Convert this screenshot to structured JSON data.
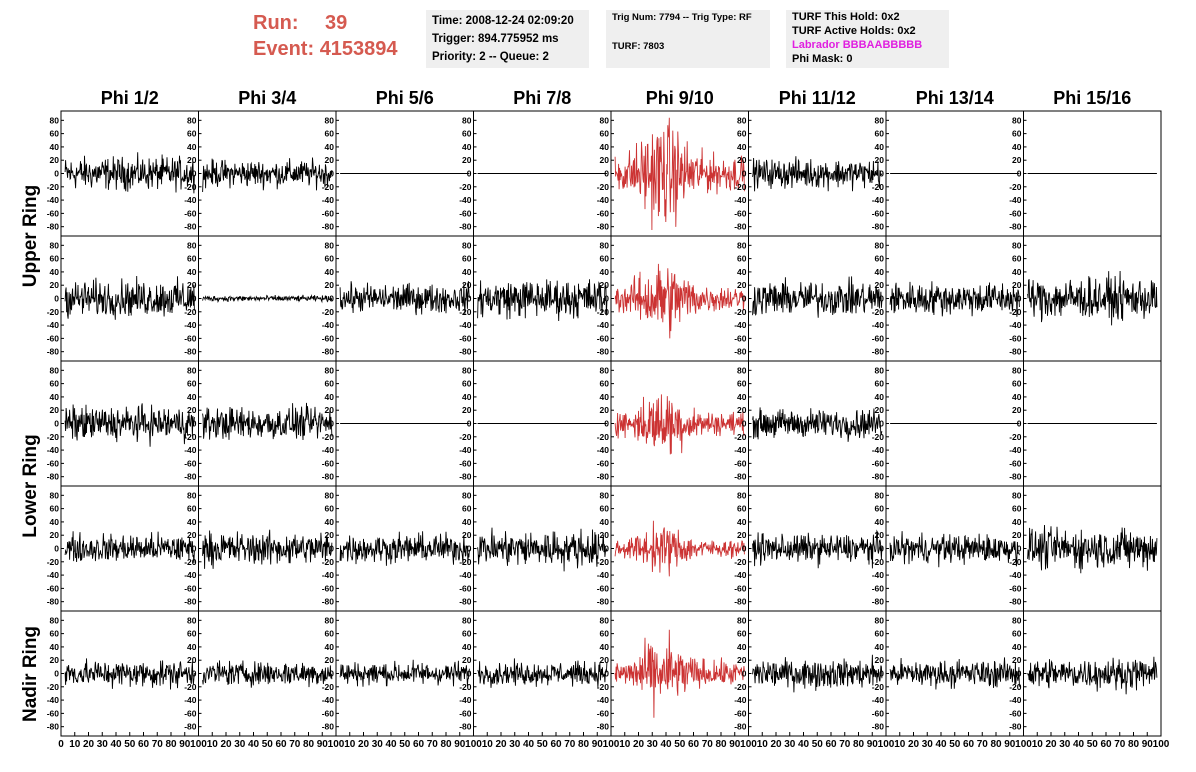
{
  "header": {
    "run_label": "Run:",
    "run_value": "39",
    "event_label": "Event:",
    "event_value": "4153894",
    "time": "Time: 2008-12-24 02:09:20",
    "trigger": "Trigger: 894.775952 ms",
    "priority": "Priority: 2 -- Queue: 2",
    "trig_num": "Trig Num: 7794 -- Trig Type: RF",
    "turf": "TURF: 7803",
    "turf_this_hold": "TURF This Hold: 0x2",
    "turf_active_holds": "TURF Active Holds: 0x2",
    "labrador": "Labrador BBBAABBBBB",
    "phi_mask": "Phi Mask: 0"
  },
  "colors": {
    "normal_trace": "#000000",
    "highlight_trace": "#cc3333",
    "run_text": "#d55a50",
    "labrador_text": "#e020e0",
    "box_bg": "#efefef"
  },
  "row_labels": [
    "Upper Ring",
    "Lower Ring",
    "Nadir Ring"
  ],
  "chart_data": {
    "type": "line",
    "columns": [
      "Phi 1/2",
      "Phi 3/4",
      "Phi 5/6",
      "Phi 7/8",
      "Phi 9/10",
      "Phi 11/12",
      "Phi 13/14",
      "Phi 15/16"
    ],
    "ylim": [
      -85,
      85
    ],
    "xlim": [
      0,
      100
    ],
    "yticks": [
      80,
      60,
      40,
      20,
      0,
      -20,
      -40,
      -60,
      -80
    ],
    "xtick_labels_first": [
      "0",
      "10",
      "20",
      "30",
      "40",
      "50",
      "60",
      "70",
      "80",
      "90",
      "100"
    ],
    "xtick_labels": [
      "10",
      "20",
      "30",
      "40",
      "50",
      "60",
      "70",
      "80",
      "90",
      "100"
    ],
    "highlight_column": "Phi 9/10",
    "grid": false,
    "rows": [
      {
        "name": "Upper Ring a",
        "amplitudes": [
          17,
          14,
          0,
          0,
          42,
          15,
          0,
          0
        ]
      },
      {
        "name": "Upper Ring b",
        "amplitudes": [
          19,
          3,
          15,
          20,
          30,
          18,
          17,
          22
        ]
      },
      {
        "name": "Lower Ring a",
        "amplitudes": [
          18,
          17,
          0,
          0,
          26,
          15,
          0,
          0
        ]
      },
      {
        "name": "Lower Ring b",
        "amplitudes": [
          15,
          17,
          15,
          19,
          19,
          15,
          15,
          21
        ]
      },
      {
        "name": "Nadir Ring",
        "amplitudes": [
          14,
          13,
          12,
          12,
          28,
          15,
          14,
          16
        ]
      }
    ]
  }
}
